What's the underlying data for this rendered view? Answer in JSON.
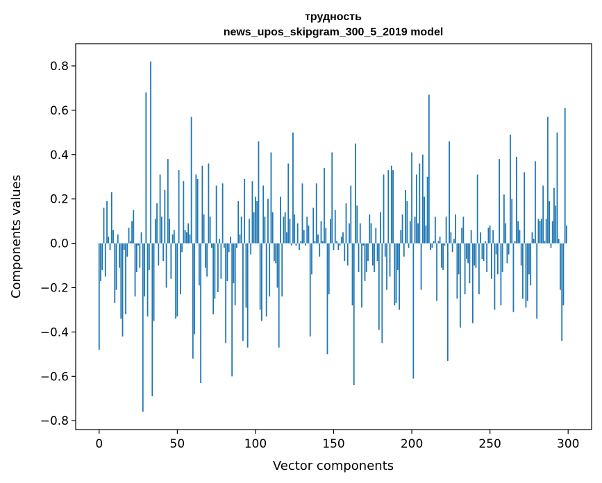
{
  "chart_data": {
    "type": "bar",
    "title": "трудность",
    "subtitle": "news_upos_skipgram_300_5_2019 model",
    "xlabel": "Vector components",
    "ylabel": "Components values",
    "xlim": [
      -15,
      315
    ],
    "ylim": [
      -0.84,
      0.9
    ],
    "xticks": [
      0,
      50,
      100,
      150,
      200,
      250,
      300
    ],
    "yticks": [
      -0.8,
      -0.6,
      -0.4,
      -0.2,
      0.0,
      0.2,
      0.4,
      0.6,
      0.8
    ],
    "ytick_labels": [
      "−0.8",
      "−0.6",
      "−0.4",
      "−0.2",
      "0.0",
      "0.2",
      "0.4",
      "0.6",
      "0.8"
    ],
    "bar_color": "#1f77b4",
    "grid": false,
    "values": [
      -0.48,
      -0.17,
      -0.12,
      0.16,
      -0.15,
      0.19,
      0.03,
      -0.03,
      0.23,
      0.06,
      -0.27,
      -0.21,
      0.04,
      -0.11,
      -0.34,
      -0.42,
      -0.03,
      -0.32,
      -0.06,
      0.07,
      0.01,
      0.1,
      0.15,
      -0.24,
      -0.13,
      -0.01,
      -0.11,
      0.05,
      -0.76,
      -0.24,
      0.68,
      -0.33,
      -0.12,
      0.82,
      -0.69,
      -0.35,
      0.11,
      0.18,
      -0.1,
      0.31,
      0.12,
      -0.08,
      0.24,
      -0.2,
      0.38,
      0.11,
      -0.16,
      0.04,
      0.06,
      -0.34,
      -0.33,
      0.33,
      -0.23,
      -0.04,
      0.28,
      0.06,
      0.05,
      0.09,
      0.04,
      0.57,
      -0.52,
      -0.41,
      0.31,
      0.29,
      -0.19,
      -0.63,
      0.35,
      0.13,
      -0.11,
      -0.15,
      0.36,
      0.12,
      -0.02,
      -0.32,
      -0.25,
      0.26,
      -0.22,
      0.02,
      -0.16,
      0.27,
      -0.02,
      -0.45,
      -0.17,
      -0.04,
      0.03,
      -0.6,
      -0.18,
      -0.28,
      -0.02,
      0.19,
      0.04,
      0.12,
      -0.44,
      0.29,
      -0.29,
      -0.47,
      0.11,
      -0.05,
      0.28,
      0.14,
      0.21,
      0.19,
      0.46,
      -0.3,
      -0.35,
      0.26,
      0.12,
      -0.33,
      0.2,
      -0.24,
      0.41,
      0.14,
      -0.08,
      -0.09,
      -0.2,
      -0.47,
      0.21,
      -0.24,
      0.12,
      0.14,
      0.05,
      0.36,
      0.11,
      -0.01,
      0.5,
      0.13,
      -0.01,
      0.09,
      -0.03,
      0.01,
      0.27,
      0.06,
      -0.01,
      0.12,
      0.08,
      -0.42,
      -0.14,
      0.16,
      0.01,
      0.27,
      0.04,
      -0.06,
      0.1,
      0.01,
      0.34,
      0.07,
      -0.5,
      -0.23,
      0.11,
      0.41,
      -0.03,
      0.15,
      0.01,
      -0.03,
      -0.01,
      0.03,
      0.05,
      -0.08,
      0.18,
      -0.1,
      0.09,
      0.26,
      -0.28,
      -0.64,
      0.45,
      0.17,
      -0.13,
      0.09,
      -0.29,
      -0.01,
      -0.17,
      -0.13,
      -0.08,
      0.13,
      0.09,
      -0.1,
      -0.13,
      0.07,
      -0.08,
      -0.39,
      0.14,
      -0.45,
      0.31,
      -0.06,
      -0.21,
      0.33,
      -0.15,
      0.35,
      0.33,
      -0.28,
      -0.27,
      -0.12,
      -0.3,
      0.06,
      0.13,
      -0.06,
      0.24,
      0.19,
      -0.02,
      0.1,
      0.41,
      -0.61,
      0.12,
      0.31,
      0.09,
      0.36,
      -0.21,
      0.4,
      0.21,
      0.08,
      0.3,
      0.67,
      -0.03,
      -0.02,
      0.01,
      0.12,
      -0.26,
      0.01,
      0.03,
      -0.11,
      -0.12,
      -0.01,
      0.12,
      -0.53,
      0.46,
      0.05,
      -0.04,
      0.02,
      0.13,
      -0.25,
      -0.14,
      -0.38,
      0.07,
      0.12,
      -0.23,
      -0.07,
      -0.09,
      -0.18,
      0.06,
      -0.36,
      -0.1,
      -0.11,
      0.31,
      -0.23,
      0.05,
      -0.07,
      -0.08,
      0.01,
      -0.13,
      0.07,
      0.08,
      -0.16,
      0.06,
      -0.3,
      -0.05,
      -0.14,
      0.38,
      -0.28,
      -0.13,
      0.22,
      0.09,
      -0.09,
      -0.05,
      0.49,
      0.2,
      -0.31,
      0.01,
      0.39,
      0.1,
      0.06,
      -0.1,
      -0.25,
      0.32,
      -0.29,
      -0.26,
      -0.14,
      -0.19,
      0.05,
      0.02,
      0.37,
      -0.34,
      0.11,
      0.1,
      0.11,
      0.26,
      0.01,
      0.11,
      0.57,
      0.19,
      -0.02,
      0.1,
      0.25,
      0.17,
      0.5,
      0.02,
      -0.21,
      -0.44,
      -0.28,
      0.61,
      0.08
    ]
  }
}
